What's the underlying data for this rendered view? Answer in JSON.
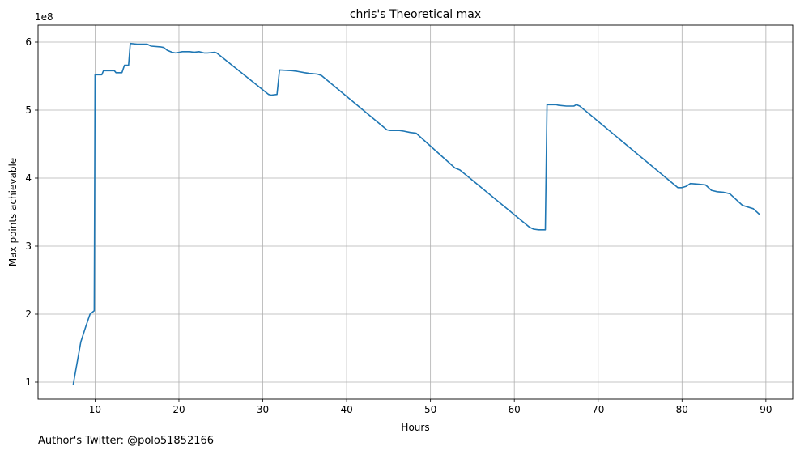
{
  "chart_data": {
    "type": "line",
    "title": "chris's Theoretical max",
    "xlabel": "Hours",
    "ylabel": "Max points achievable",
    "y_offset_label": "1e8",
    "xlim": [
      3.2,
      93.2
    ],
    "ylim": [
      0.75,
      6.25
    ],
    "xticks": [
      10,
      20,
      30,
      40,
      50,
      60,
      70,
      80,
      90
    ],
    "yticks": [
      1,
      2,
      3,
      4,
      5,
      6
    ],
    "grid": true,
    "line_color": "#1f77b4",
    "series": [
      {
        "x": [
          7.4,
          8.3,
          8.9,
          9.4,
          9.9,
          10.0,
          10.8,
          11.0,
          12.3,
          12.5,
          13.2,
          13.5,
          14.0,
          14.2,
          15.0,
          16.2,
          16.7,
          17.8,
          18.2,
          18.6,
          19.2,
          19.6,
          20.0,
          20.4,
          21.3,
          21.8,
          22.4,
          23.0,
          23.4,
          24.3,
          24.5,
          30.7,
          31.0,
          31.7,
          32.0,
          33.5,
          34.1,
          35.0,
          35.5,
          36.5,
          37.0,
          44.8,
          45.2,
          46.3,
          46.8,
          47.6,
          48.3,
          52.9,
          53.5,
          61.8,
          62.3,
          62.9,
          63.7,
          63.9,
          65.0,
          65.3,
          66.2,
          66.9,
          67.1,
          67.4,
          67.8,
          79.5,
          80.0,
          80.5,
          81.0,
          82.0,
          82.8,
          83.5,
          84.2,
          85.0,
          85.7,
          87.2,
          88.5,
          89.2
        ],
        "y": [
          0.97,
          1.59,
          1.82,
          2.0,
          2.05,
          5.52,
          5.52,
          5.58,
          5.58,
          5.55,
          5.55,
          5.66,
          5.66,
          5.98,
          5.97,
          5.97,
          5.94,
          5.93,
          5.92,
          5.88,
          5.85,
          5.84,
          5.85,
          5.86,
          5.86,
          5.85,
          5.86,
          5.84,
          5.84,
          5.85,
          5.84,
          5.23,
          5.22,
          5.23,
          5.59,
          5.58,
          5.57,
          5.55,
          5.54,
          5.53,
          5.51,
          4.71,
          4.7,
          4.7,
          4.69,
          4.67,
          4.66,
          4.15,
          4.12,
          3.28,
          3.25,
          3.24,
          3.24,
          5.08,
          5.08,
          5.07,
          5.06,
          5.06,
          5.06,
          5.08,
          5.06,
          3.86,
          3.86,
          3.88,
          3.92,
          3.91,
          3.9,
          3.82,
          3.8,
          3.79,
          3.77,
          3.6,
          3.55,
          3.47
        ]
      }
    ]
  },
  "footer": {
    "author_text": "Author's Twitter: @polo51852166"
  }
}
